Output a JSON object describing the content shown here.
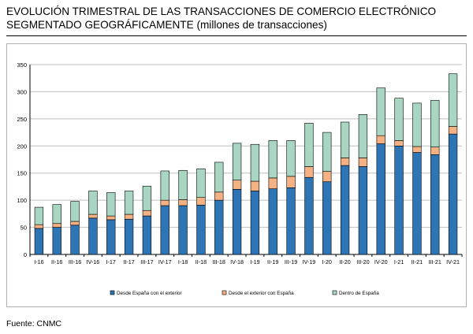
{
  "title": {
    "line1": "EVOLUCIÓN TRIMESTRAL DE LAS TRANSACCIONES DE COMERCIO ELECTRÓNICO",
    "line2": "SEGMENTADO GEOGRÁFICAMENTE",
    "line2_suffix": " (millones de transacciones)"
  },
  "source": "Fuente: CNMC",
  "chart_data": {
    "type": "bar",
    "stacked": true,
    "categories": [
      "I-16",
      "II-16",
      "III-16",
      "IV-16",
      "I-17",
      "II-17",
      "III-17",
      "IV-17",
      "I-18",
      "II-18",
      "III-18",
      "IV-18",
      "I-19",
      "II-19",
      "III-19",
      "IV-19",
      "I-20",
      "II-20",
      "III-20",
      "IV-20",
      "I-21",
      "II-21",
      "III-21",
      "IV-21"
    ],
    "series": [
      {
        "name": "Desde España con el exterior",
        "color": "#2e75b6",
        "values": [
          48,
          50,
          54,
          67,
          64,
          65,
          71,
          90,
          90,
          91,
          100,
          120,
          117,
          121,
          123,
          142,
          134,
          164,
          162,
          204,
          200,
          188,
          184,
          222
        ]
      },
      {
        "name": "Desde el exterior con España",
        "color": "#f4b183",
        "values": [
          7,
          7,
          7,
          7,
          7,
          9,
          10,
          10,
          11,
          14,
          15,
          17,
          18,
          20,
          21,
          20,
          19,
          14,
          16,
          15,
          10,
          11,
          14,
          14
        ]
      },
      {
        "name": "Dentro de España",
        "color": "#a9d6c2",
        "values": [
          32,
          35,
          37,
          43,
          43,
          43,
          45,
          54,
          54,
          53,
          55,
          68,
          68,
          69,
          66,
          80,
          72,
          66,
          80,
          88,
          78,
          80,
          86,
          97
        ]
      }
    ],
    "yticks": [
      0,
      50,
      100,
      150,
      200,
      250,
      300,
      350
    ],
    "ylim": [
      0,
      350
    ],
    "grid": true,
    "legend_position": "bottom"
  }
}
